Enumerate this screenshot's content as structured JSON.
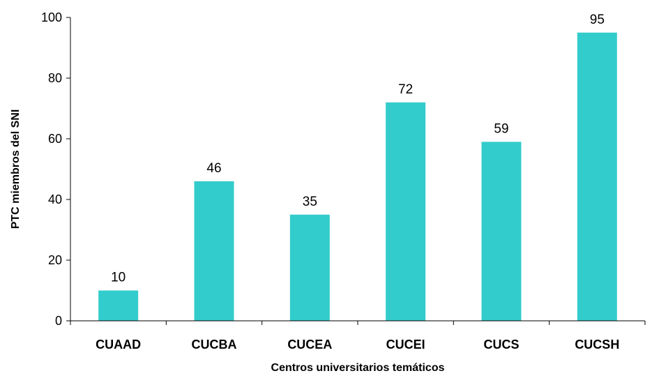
{
  "chart_data": {
    "type": "bar",
    "title": "",
    "xlabel": "Centros universitarios temáticos",
    "ylabel": "PTC miembros del SNI",
    "categories": [
      "CUAAD",
      "CUCBA",
      "CUCEA",
      "CUCEI",
      "CUCS",
      "CUCSH"
    ],
    "values": [
      10,
      46,
      35,
      72,
      59,
      95
    ],
    "ylim": [
      0,
      100
    ],
    "yticks": [
      0,
      20,
      40,
      60,
      80,
      100
    ],
    "grid": false,
    "legend": "none",
    "data_labels": true,
    "bar_color": "#33CCCC"
  }
}
